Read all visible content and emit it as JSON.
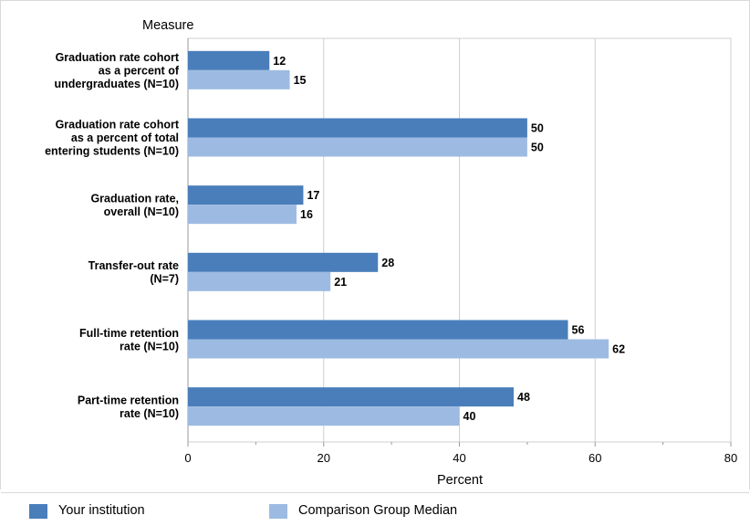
{
  "colors": {
    "your_institution": "#4a7ebb",
    "comparison_median": "#9dbbe2",
    "grid": "#cfcfcf",
    "axis": "#9a9a9a"
  },
  "chart_data": {
    "type": "bar",
    "orientation": "horizontal",
    "title": "Measure",
    "xlabel": "Percent",
    "xlim": [
      0,
      80
    ],
    "xticks": [
      0,
      20,
      40,
      60,
      80
    ],
    "grid": true,
    "legend_position": "bottom",
    "categories": [
      [
        "Graduation rate cohort",
        "as a percent of",
        "undergraduates (N=10)"
      ],
      [
        "Graduation rate cohort",
        "as a percent of total",
        "entering students (N=10)"
      ],
      [
        "Graduation rate,",
        "overall (N=10)"
      ],
      [
        "Transfer-out rate",
        "(N=7)"
      ],
      [
        "Full-time retention",
        "rate (N=10)"
      ],
      [
        "Part-time retention",
        "rate (N=10)"
      ]
    ],
    "series": [
      {
        "name": "Your institution",
        "values": [
          12,
          50,
          17,
          28,
          56,
          48
        ]
      },
      {
        "name": "Comparison Group Median",
        "values": [
          15,
          50,
          16,
          21,
          62,
          40
        ]
      }
    ]
  }
}
